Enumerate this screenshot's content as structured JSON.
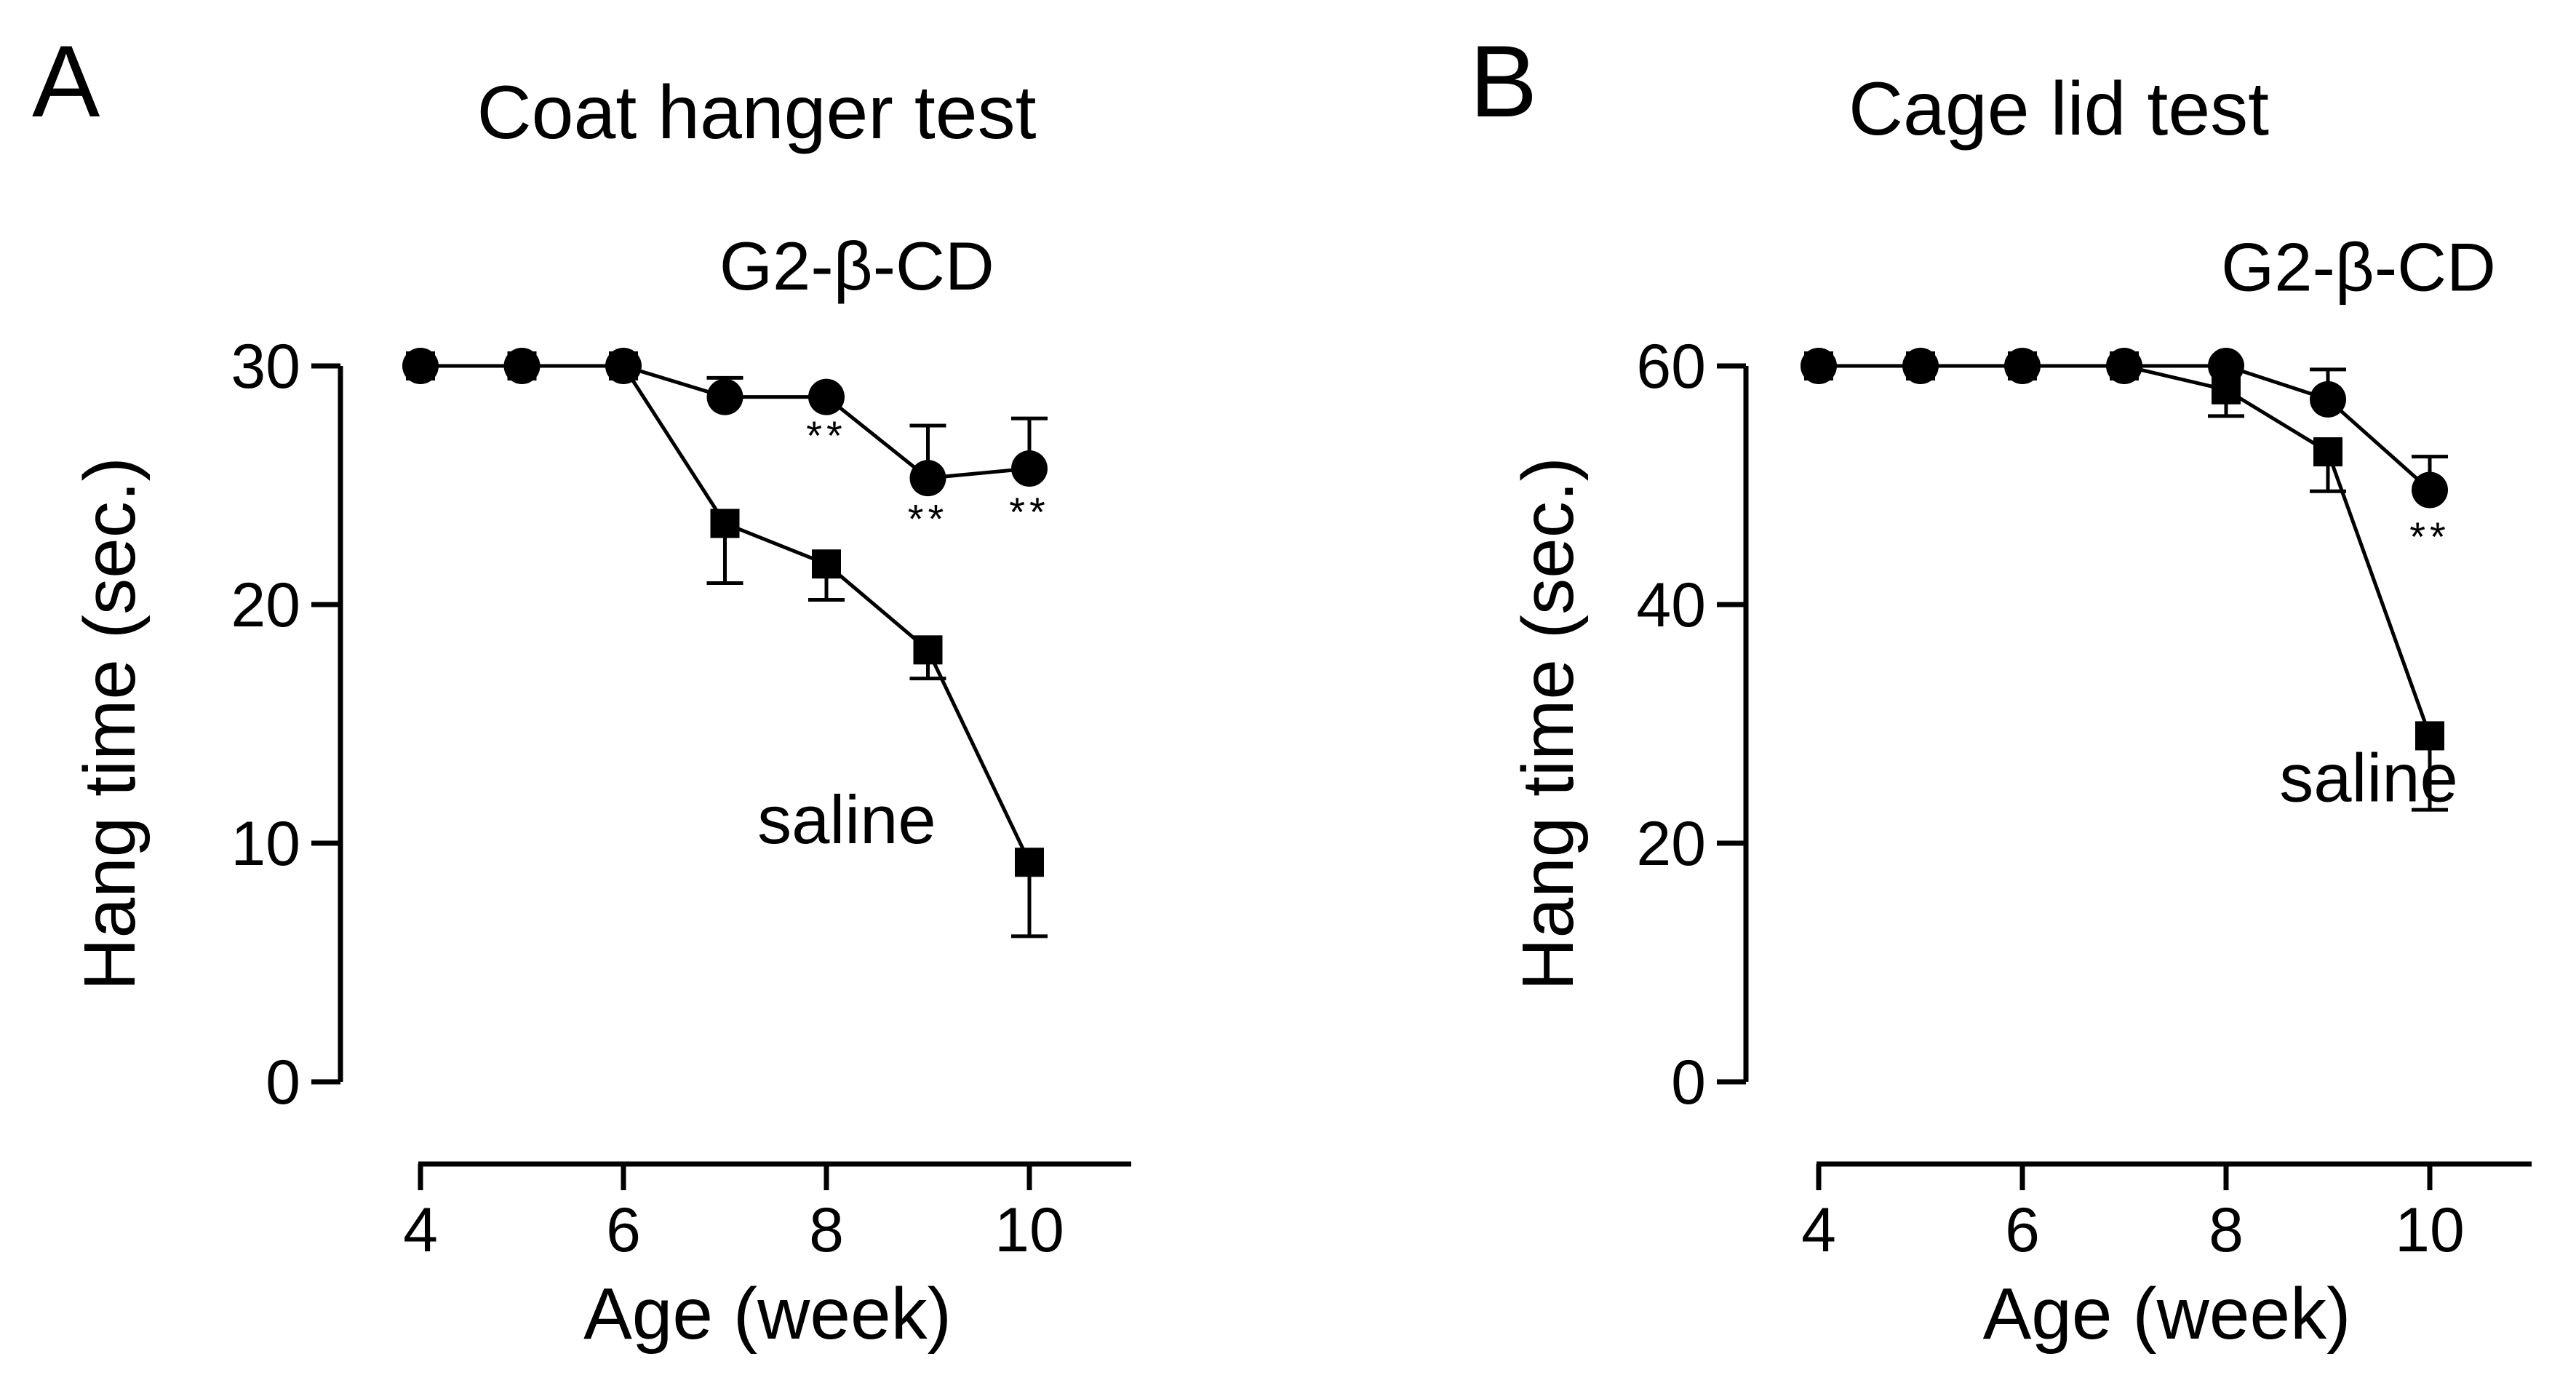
{
  "chart_data": [
    {
      "panel_label": "A",
      "title": "Coat hanger test",
      "type": "line",
      "xlabel": "Age (week)",
      "ylabel": "Hang time (sec.)",
      "xlim": [
        4,
        11
      ],
      "ylim": [
        0,
        30
      ],
      "x_ticks": [
        4,
        6,
        8,
        10
      ],
      "y_ticks": [
        0,
        10,
        20,
        30
      ],
      "grid": false,
      "series": [
        {
          "name": "G2-β-CD",
          "marker": "circle",
          "x": [
            4,
            5,
            6,
            7,
            8,
            9,
            10
          ],
          "y": [
            30,
            30,
            30,
            28.7,
            28.7,
            25.3,
            25.7
          ],
          "error": [
            0,
            0,
            0,
            0.8,
            0,
            2.2,
            2.1
          ]
        },
        {
          "name": "saline",
          "marker": "square",
          "x": [
            4,
            5,
            6,
            7,
            8,
            9,
            10
          ],
          "y": [
            30,
            30,
            30,
            23.4,
            21.7,
            18.1,
            9.2
          ],
          "error": [
            0,
            0,
            0,
            2.5,
            1.5,
            1.2,
            3.1
          ]
        }
      ],
      "significance": [
        {
          "x": 8,
          "y": 26.5,
          "label": "**"
        },
        {
          "x": 9,
          "y": 23.0,
          "label": "**"
        },
        {
          "x": 10,
          "y": 23.3,
          "label": "**"
        }
      ],
      "series_labels": [
        {
          "series": "G2-β-CD",
          "x": 8.3,
          "y": 33.2,
          "anchor": "middle"
        },
        {
          "series": "saline",
          "x": 8.2,
          "y": 10.0,
          "anchor": "middle"
        }
      ]
    },
    {
      "panel_label": "B",
      "title": "Cage lid test",
      "type": "line",
      "xlabel": "Age (week)",
      "ylabel": "Hang time (sec.)",
      "xlim": [
        4,
        11
      ],
      "ylim": [
        0,
        60
      ],
      "x_ticks": [
        4,
        6,
        8,
        10
      ],
      "y_ticks": [
        0,
        20,
        40,
        60
      ],
      "grid": false,
      "series": [
        {
          "name": "G2-β-CD",
          "marker": "circle",
          "x": [
            4,
            5,
            6,
            7,
            8,
            9,
            10
          ],
          "y": [
            60,
            60,
            60,
            60,
            60,
            57.2,
            49.6
          ],
          "error": [
            0,
            0,
            0,
            0,
            0,
            2.5,
            2.8
          ]
        },
        {
          "name": "saline",
          "marker": "square",
          "x": [
            4,
            5,
            6,
            7,
            8,
            9,
            10
          ],
          "y": [
            60,
            60,
            60,
            60,
            58,
            52.8,
            29
          ],
          "error": [
            0,
            0,
            0,
            0,
            2.2,
            3.3,
            6.2
          ]
        }
      ],
      "significance": [
        {
          "x": 10,
          "y": 44.5,
          "label": "**"
        }
      ],
      "series_labels": [
        {
          "series": "G2-β-CD",
          "x": 9.3,
          "y": 66.3,
          "anchor": "middle"
        },
        {
          "series": "saline",
          "x": 9.4,
          "y": 23.5,
          "anchor": "middle"
        }
      ]
    }
  ]
}
